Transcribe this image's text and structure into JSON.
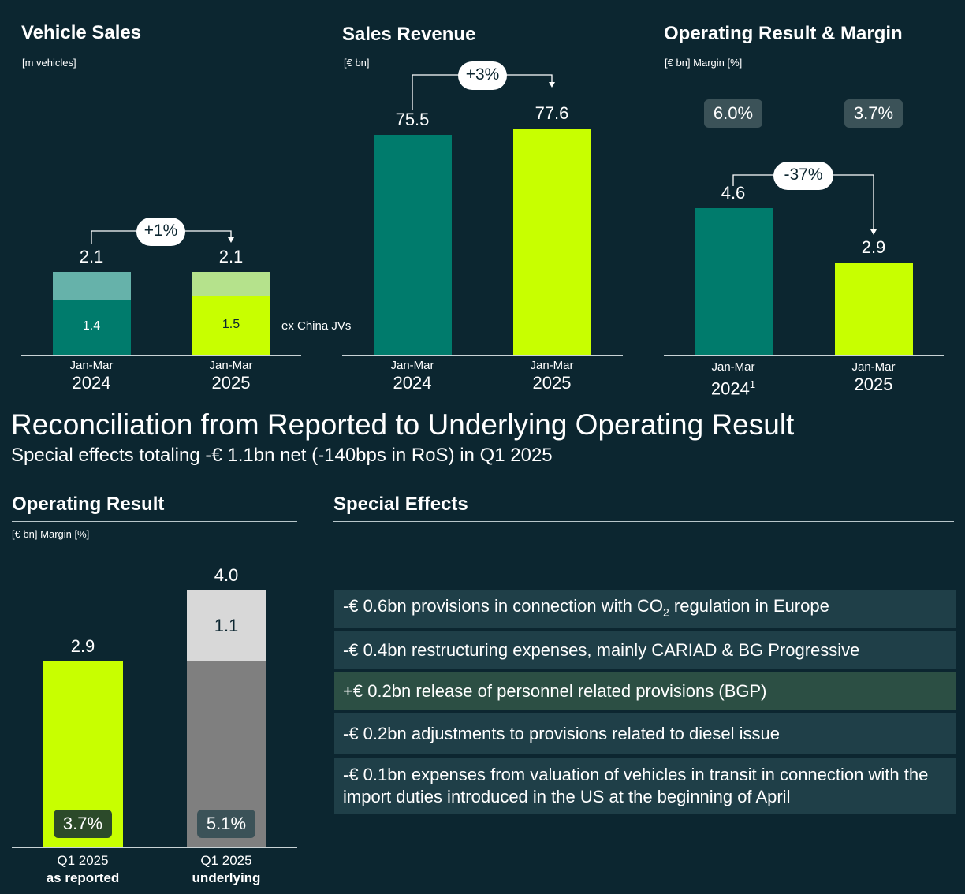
{
  "colors": {
    "background": "#0c2630",
    "teal": "#007b6c",
    "teal_light": "#66b2aa",
    "lime": "#c8ff00",
    "lime_light": "#b5e28c",
    "gray_mid": "#7f7f7f",
    "gray_light": "#d8d8d8",
    "badge_dark": "#3b5258",
    "badge_green": "#2c4a2a",
    "effect_row": "#1f3f48",
    "effect_row_positive": "#2c4f44"
  },
  "panels": {
    "vehicle_sales": {
      "title": "Vehicle Sales",
      "unit": "[m vehicles]",
      "note": "ex China JVs"
    },
    "sales_revenue": {
      "title": "Sales Revenue",
      "unit": "[€ bn]"
    },
    "operating_margin": {
      "title": "Operating Result & Margin",
      "unit": "[€ bn] Margin [%]"
    },
    "operating_result": {
      "title": "Operating Result",
      "unit": "[€ bn] Margin [%]"
    },
    "special_effects": {
      "title": "Special Effects"
    }
  },
  "reconciliation": {
    "title": "Reconciliation from Reported to Underlying Operating Result",
    "subtitle": "Special effects totaling -€ 1.1bn net (-140bps in RoS) in Q1 2025"
  },
  "chart_data": [
    {
      "id": "vehicle_sales",
      "type": "bar",
      "stacked": true,
      "title": "Vehicle Sales",
      "unit": "[m vehicles]",
      "categories": [
        {
          "line1": "Jan-Mar",
          "line2": "2024"
        },
        {
          "line1": "Jan-Mar",
          "line2": "2025"
        }
      ],
      "totals": [
        "2.1",
        "2.1"
      ],
      "total_values": [
        2.1,
        2.1
      ],
      "segments": [
        {
          "name": "ex China JVs",
          "values": [
            1.4,
            1.5
          ],
          "labels": [
            "1.4",
            "1.5"
          ]
        }
      ],
      "change_label": "+1%",
      "ylim": [
        0,
        2.6
      ]
    },
    {
      "id": "sales_revenue",
      "type": "bar",
      "title": "Sales Revenue",
      "unit": "[€ bn]",
      "categories": [
        {
          "line1": "Jan-Mar",
          "line2": "2024"
        },
        {
          "line1": "Jan-Mar",
          "line2": "2025"
        }
      ],
      "values": [
        75.5,
        77.6
      ],
      "labels": [
        "75.5",
        "77.6"
      ],
      "change_label": "+3%",
      "axis_break": true,
      "ylim": [
        0,
        80
      ]
    },
    {
      "id": "operating_result_margin",
      "type": "bar",
      "title": "Operating Result & Margin",
      "unit": "[€ bn] Margin [%]",
      "categories": [
        {
          "line1": "Jan-Mar",
          "line2": "2024",
          "footnote": "1"
        },
        {
          "line1": "Jan-Mar",
          "line2": "2025"
        }
      ],
      "values": [
        4.6,
        2.9
      ],
      "labels": [
        "4.6",
        "2.9"
      ],
      "margins": [
        "6.0%",
        "3.7%"
      ],
      "change_label": "-37%",
      "ylim": [
        0,
        6.6
      ]
    },
    {
      "id": "operating_result",
      "type": "bar",
      "stacked": true,
      "title": "Operating Result",
      "unit": "[€ bn] Margin [%]",
      "categories": [
        {
          "line1": "Q1 2025",
          "line2": "as reported"
        },
        {
          "line1": "Q1 2025",
          "line2": "underlying"
        }
      ],
      "values": [
        2.9,
        4.0
      ],
      "labels": [
        "2.9",
        "4.0"
      ],
      "special_effects_value": 1.1,
      "special_effects_label": "1.1",
      "margins": [
        "3.7%",
        "5.1%"
      ],
      "ylim": [
        0,
        4.4
      ]
    }
  ],
  "special_effects": [
    {
      "prefix": "-€ 0.6bn provisions in connection with CO",
      "sub": "2",
      "suffix": " regulation in Europe",
      "positive": false
    },
    {
      "prefix": "-€ 0.4bn restructuring expenses, mainly CARIAD & BG Progressive",
      "sub": "",
      "suffix": "",
      "positive": false
    },
    {
      "prefix": "+€ 0.2bn release of personnel related provisions (BGP)",
      "sub": "",
      "suffix": "",
      "positive": true
    },
    {
      "prefix": "-€ 0.2bn adjustments to provisions related to diesel issue",
      "sub": "",
      "suffix": "",
      "positive": false
    },
    {
      "prefix": "-€ 0.1bn expenses from valuation of vehicles in transit in connection with the import duties introduced in the US at the beginning of April",
      "sub": "",
      "suffix": "",
      "positive": false
    }
  ]
}
